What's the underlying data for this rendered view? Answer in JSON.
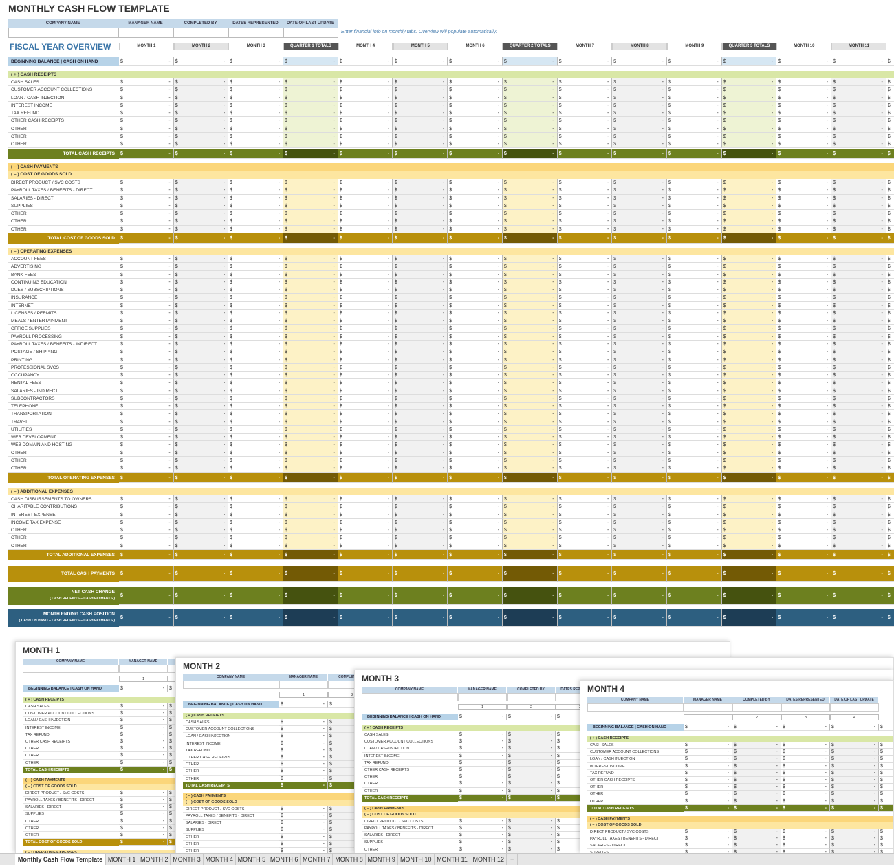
{
  "title": "MONTHLY CASH FLOW TEMPLATE",
  "header_fields": [
    "COMPANY NAME",
    "MANAGER NAME",
    "COMPLETED BY",
    "DATES REPRESENTED",
    "DATE OF LAST UPDATE"
  ],
  "note": "Enter financial info on monthly tabs.  Overview will populate automatically.",
  "overview": {
    "title": "FISCAL YEAR OVERVIEW",
    "columns": [
      "MONTH 1",
      "MONTH 2",
      "MONTH 3",
      "QUARTER 1 TOTALS",
      "MONTH 4",
      "MONTH 5",
      "MONTH 6",
      "QUARTER 2 TOTALS",
      "MONTH 7",
      "MONTH 8",
      "MONTH 9",
      "QUARTER 3 TOTALS",
      "MONTH 10",
      "MONTH 11"
    ],
    "beginning_balance": "BEGINNING BALANCE | CASH ON HAND",
    "currency": "$",
    "empty": "-",
    "sections": [
      {
        "header": "( + )  CASH RECEIPTS",
        "rows": [
          "CASH SALES",
          "CUSTOMER ACCOUNT COLLECTIONS",
          "LOAN / CASH INJECTION",
          "INTEREST INCOME",
          "TAX REFUND",
          "OTHER CASH RECEIPTS",
          "OTHER",
          "OTHER",
          "OTHER"
        ],
        "total": "TOTAL CASH RECEIPTS"
      },
      {
        "header": "( – )  CASH PAYMENTS",
        "subheader": "( – )  COST OF GOODS SOLD",
        "rows": [
          "DIRECT PRODUCT / SVC COSTS",
          "PAYROLL TAXES / BENEFITS - DIRECT",
          "SALARIES - DIRECT",
          "SUPPLIES",
          "OTHER",
          "OTHER",
          "OTHER"
        ],
        "total": "TOTAL COST OF GOODS SOLD"
      },
      {
        "header": "( – )  OPERATING EXPENSES",
        "rows": [
          "ACCOUNT FEES",
          "ADVERTISING",
          "BANK FEES",
          "CONTINUING EDUCATION",
          "DUES / SUBSCRIPTIONS",
          "INSURANCE",
          "INTERNET",
          "LICENSES / PERMITS",
          "MEALS / ENTERTAINMENT",
          "OFFICE SUPPLIES",
          "PAYROLL PROCESSING",
          "PAYROLL TAXES / BENEFITS - INDIRECT",
          "POSTAGE / SHIPPING",
          "PRINTING",
          "PROFESSIONAL SVCS",
          "OCCUPANCY",
          "RENTAL FEES",
          "SALARIES - INDIRECT",
          "SUBCONTRACTORS",
          "TELEPHONE",
          "TRANSPORTATION",
          "TRAVEL",
          "UTILITIES",
          "WEB DEVELOPMENT",
          "WEB DOMAIN AND HOSTING",
          "OTHER",
          "OTHER",
          "OTHER"
        ],
        "total": "TOTAL OPERATING EXPENSES"
      },
      {
        "header": "( – )  ADDITIONAL EXPENSES",
        "rows": [
          "CASH DISBURSEMENTS TO OWNERS",
          "CHARITABLE CONTRIBUTIONS",
          "INTEREST EXPENSE",
          "INCOME TAX EXPENSE",
          "OTHER",
          "OTHER",
          "OTHER"
        ],
        "total": "TOTAL ADDITIONAL EXPENSES"
      }
    ],
    "summary": [
      {
        "label": "TOTAL CASH PAYMENTS"
      },
      {
        "label": "NET CASH CHANGE",
        "sublabel": "( CASH RECEIPTS – CASH PAYMENTS )"
      },
      {
        "label": "MONTH ENDING CASH POSITION",
        "sublabel": "( CASH ON HAND + CASH RECEIPTS – CASH PAYMENTS )"
      }
    ]
  },
  "month_sheets": [
    {
      "title": "MONTH 1"
    },
    {
      "title": "MONTH 2"
    },
    {
      "title": "MONTH 3"
    },
    {
      "title": "MONTH 4"
    }
  ],
  "period_numbers": [
    "1",
    "2",
    "3",
    "4"
  ],
  "tabs": [
    "Monthly Cash Flow Template",
    "MONTH 1",
    "MONTH 2",
    "MONTH 3",
    "MONTH 4",
    "MONTH 5",
    "MONTH 6",
    "MONTH 7",
    "MONTH 8",
    "MONTH 9",
    "MONTH 10",
    "MONTH 11",
    "MONTH 12",
    "+"
  ]
}
